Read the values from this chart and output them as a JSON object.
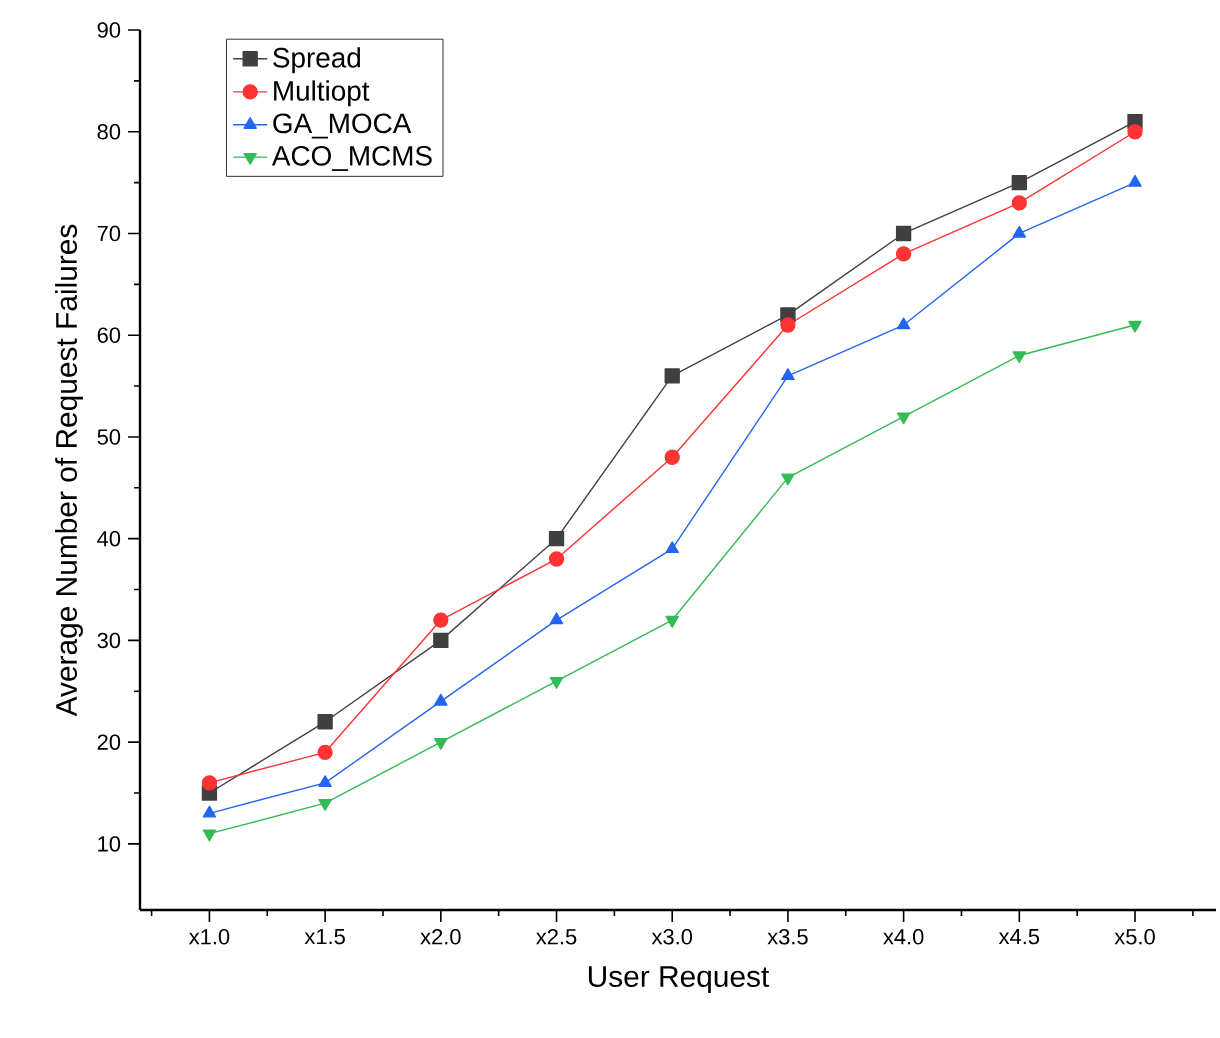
{
  "chart_data": {
    "type": "line",
    "xlabel": "User Request",
    "ylabel": "Average Number of Request Failures",
    "categories": [
      "x1.0",
      "x1.5",
      "x2.0",
      "x2.5",
      "x3.0",
      "x3.5",
      "x4.0",
      "x4.5",
      "x5.0"
    ],
    "ylim": [
      3.5,
      90
    ],
    "yticks": [
      10,
      20,
      30,
      40,
      50,
      60,
      70,
      80,
      90
    ],
    "grid": false,
    "legend": "top left",
    "series": [
      {
        "name": "Spread",
        "color": "#404040",
        "marker": "square",
        "values": [
          15,
          22,
          30,
          40,
          56,
          62,
          70,
          75,
          81
        ]
      },
      {
        "name": "Multiopt",
        "color": "#ff3333",
        "marker": "circle",
        "values": [
          16,
          19,
          32,
          38,
          48,
          61,
          68,
          73,
          80
        ]
      },
      {
        "name": "GA_MOCA",
        "color": "#2266ee",
        "marker": "triangle",
        "values": [
          13,
          16,
          24,
          32,
          39,
          56,
          61,
          70,
          75
        ]
      },
      {
        "name": "ACO_MCMS",
        "color": "#33bb55",
        "marker": "triangle down",
        "values": [
          11,
          14,
          20,
          26,
          32,
          46,
          52,
          58,
          61
        ]
      }
    ]
  }
}
